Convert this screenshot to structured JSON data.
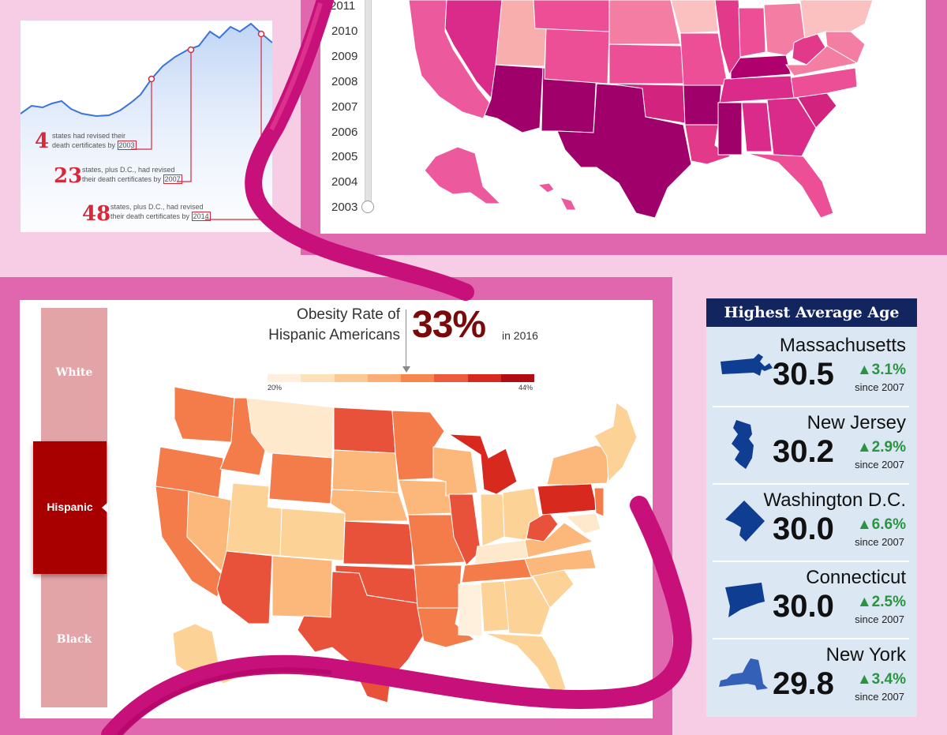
{
  "line_chart": {
    "notes": [
      {
        "number": "4",
        "text_a": "states had revised their",
        "text_b": "death certificates by ",
        "year": "2003"
      },
      {
        "number": "23",
        "text_a": "states, plus D.C., had revised",
        "text_b": "their death certificates by ",
        "year": "2007"
      },
      {
        "number": "48",
        "text_a": "states, plus D.C., had revised",
        "text_b": "their death certificates by ",
        "year": "2014"
      }
    ],
    "colors": {
      "line": "#3a74d9",
      "accent": "#d62a3a"
    }
  },
  "year_slider": {
    "years": [
      "2011",
      "2010",
      "2009",
      "2008",
      "2007",
      "2006",
      "2005",
      "2004",
      "2003"
    ],
    "selected": "2003"
  },
  "obesity": {
    "title_line1": "Obesity Rate of",
    "title_line2": "Hispanic Americans",
    "value": "33%",
    "year_label": "in 2016",
    "scale_min": "20%",
    "scale_max": "44%",
    "scale_colors": [
      "#fef0dc",
      "#fde1b8",
      "#fcc992",
      "#fbae74",
      "#f7864c",
      "#ec5b3c",
      "#d8291f",
      "#b00c12"
    ],
    "tabs": [
      {
        "label": "White",
        "active": false
      },
      {
        "label": "Hispanic",
        "active": true
      },
      {
        "label": "Black",
        "active": false
      }
    ]
  },
  "average_age": {
    "heading": "Highest Average Age",
    "rows": [
      {
        "state": "Massachusetts",
        "age": "30.5",
        "change": "▲3.1%",
        "since": "since 2007",
        "icon": "massachusetts-shape-icon"
      },
      {
        "state": "New Jersey",
        "age": "30.2",
        "change": "▲2.9%",
        "since": "since 2007",
        "icon": "new-jersey-shape-icon"
      },
      {
        "state": "Washington D.C.",
        "age": "30.0",
        "change": "▲6.6%",
        "since": "since 2007",
        "icon": "washington-dc-shape-icon"
      },
      {
        "state": "Connecticut",
        "age": "30.0",
        "change": "▲2.5%",
        "since": "since 2007",
        "icon": "connecticut-shape-icon"
      },
      {
        "state": "New York",
        "age": "29.8",
        "change": "▲3.4%",
        "since": "since 2007",
        "icon": "new-york-shape-icon"
      }
    ]
  },
  "palette": {
    "background": "#f6cde4",
    "frame": "#e066ad",
    "ribbon": "#c8107a",
    "age_header": "#12255f",
    "state_blue": "#0f3d91",
    "positive": "#2a9440",
    "hispanic_tab": "#a80000",
    "inactive_tab": "#e3a4a8"
  }
}
